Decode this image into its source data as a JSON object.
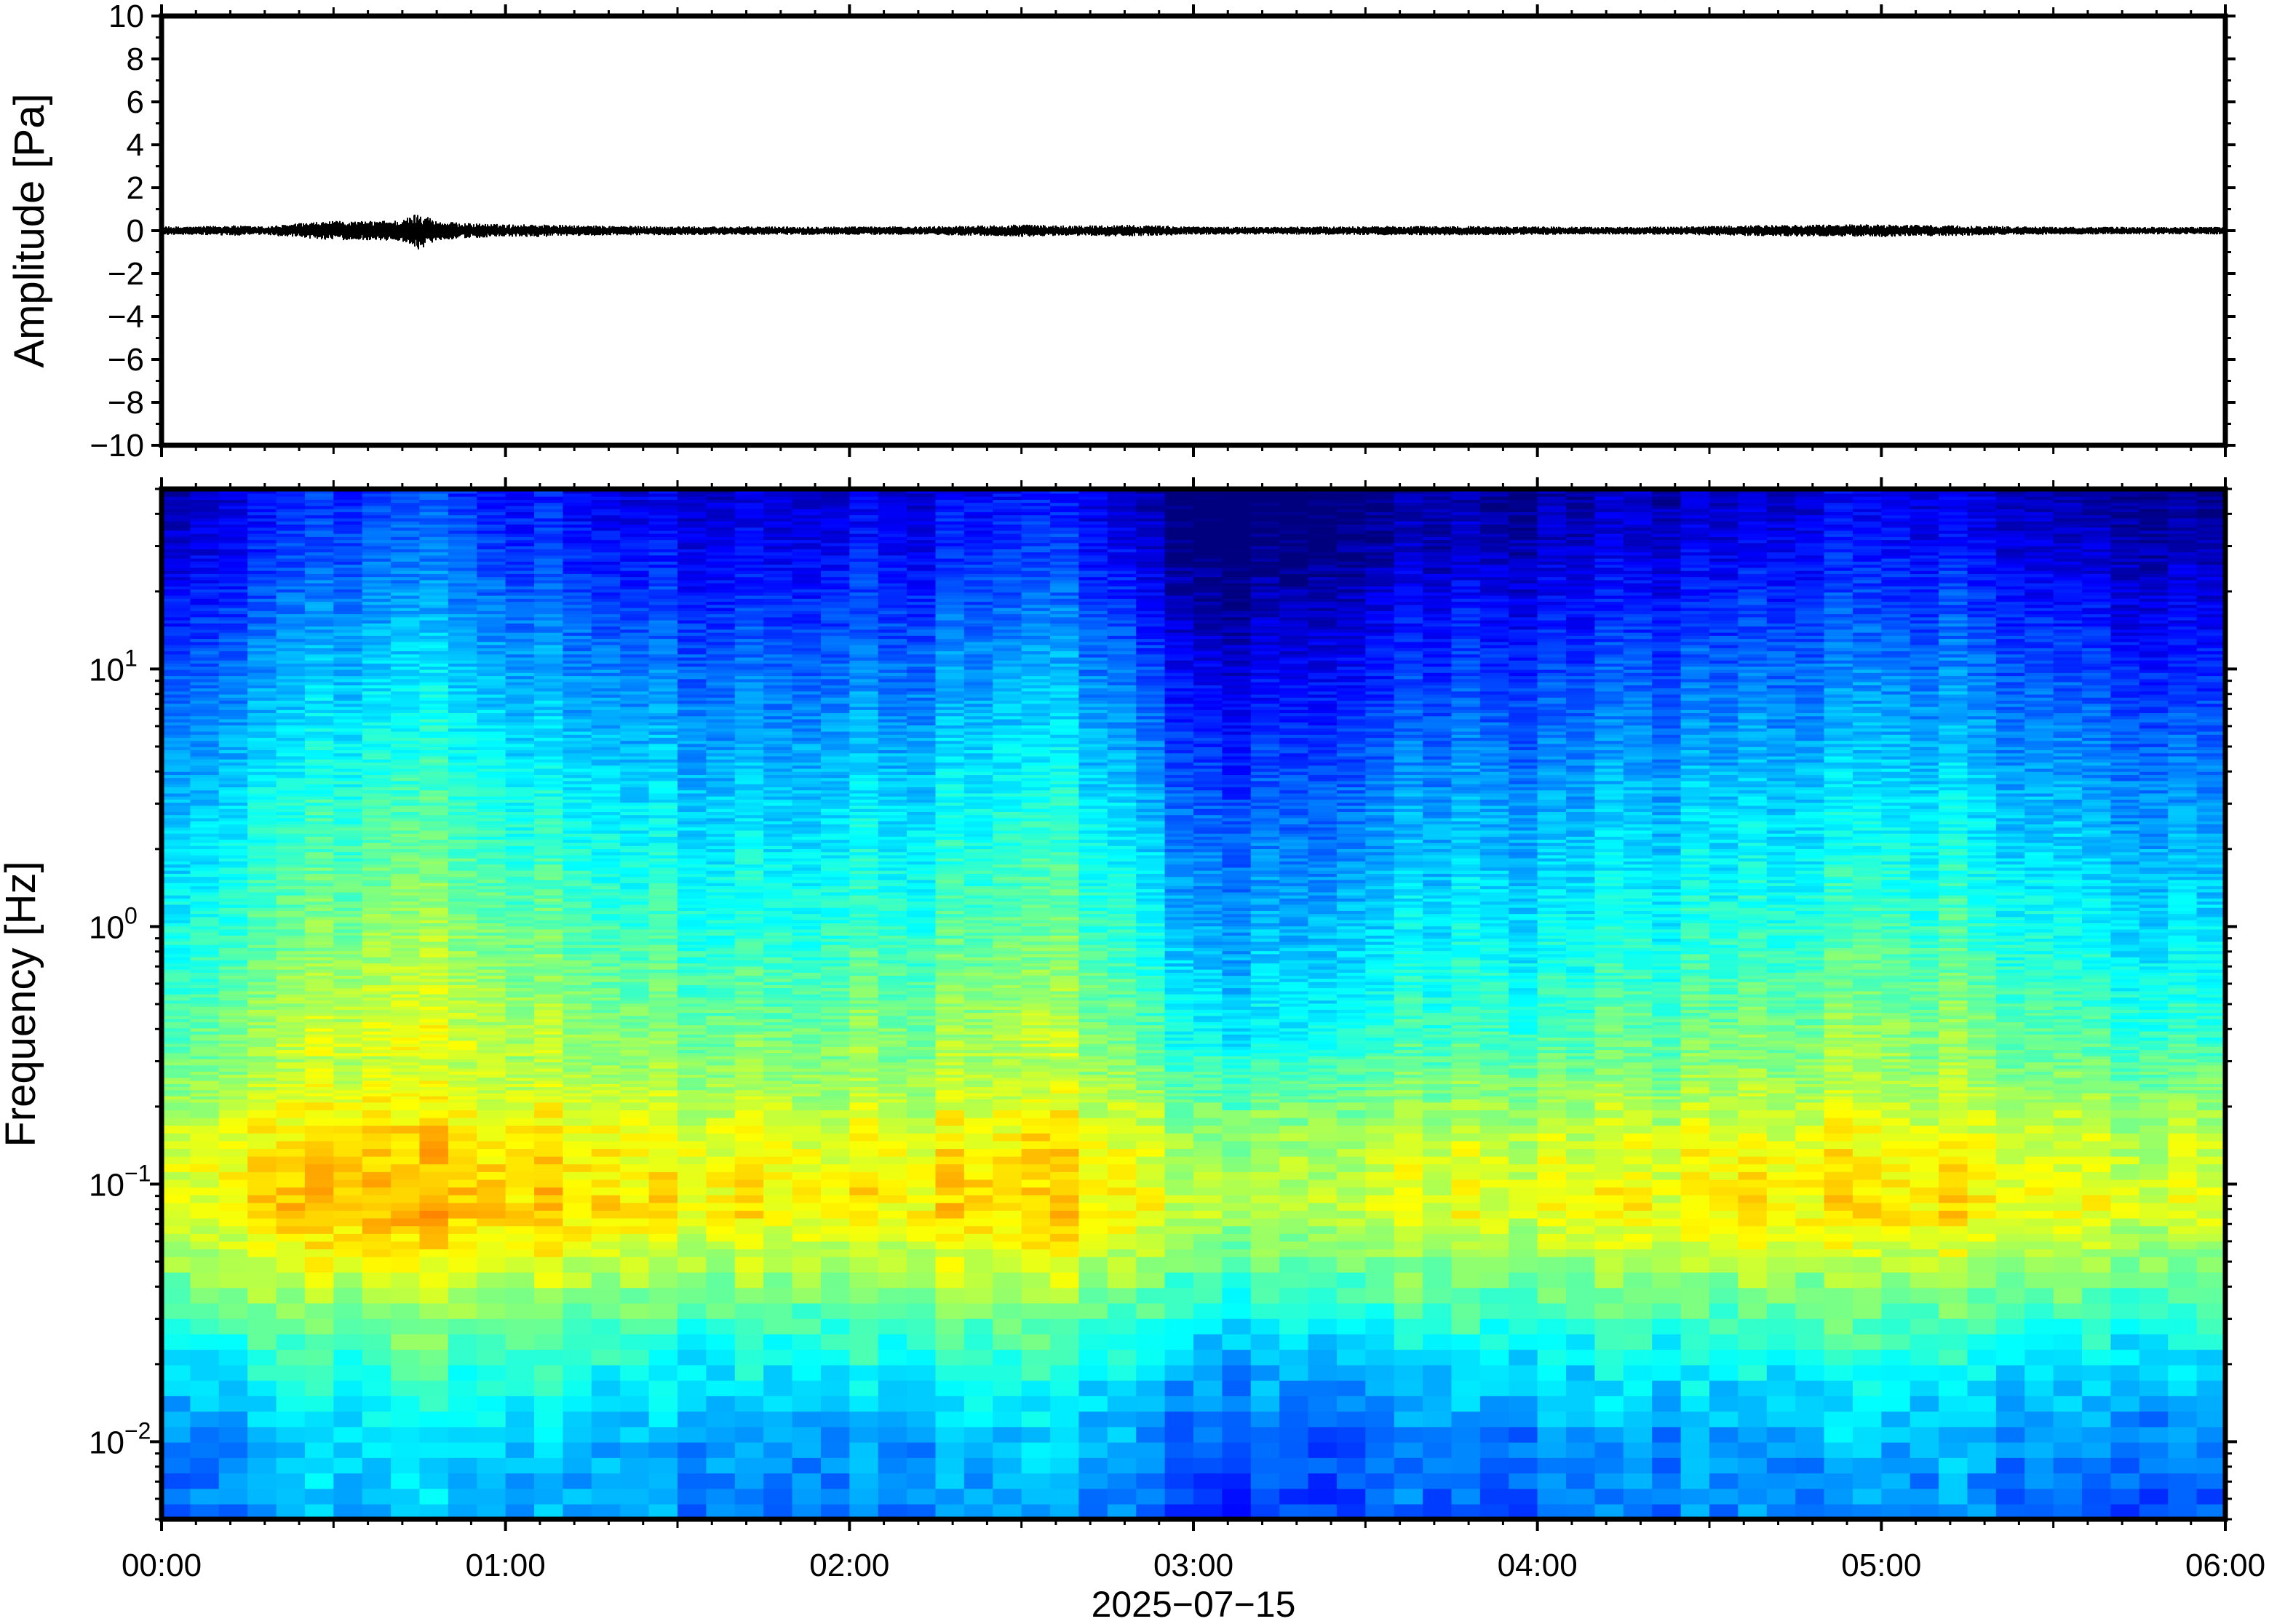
{
  "chart_data": [
    {
      "type": "line",
      "panel": "waveform",
      "ylabel": "Amplitude [Pa]",
      "ylim": [
        -10,
        10
      ],
      "yticks": [
        10,
        8,
        6,
        4,
        2,
        0,
        -2,
        -4,
        -6,
        -8,
        -10
      ],
      "ytick_labels": [
        "10",
        "8",
        "6",
        "4",
        "2",
        "0",
        "−2",
        "−4",
        "−6",
        "−8",
        "−10"
      ],
      "x_range_hours": [
        0,
        6
      ],
      "series": [
        {
          "color": "#000000",
          "envelope_time_hours": [
            0.0,
            0.1,
            0.2,
            0.3,
            0.4,
            0.5,
            0.6,
            0.7,
            0.75,
            0.8,
            0.9,
            1.0,
            1.1,
            1.2,
            1.4,
            1.6,
            1.8,
            2.0,
            2.2,
            2.4,
            2.5,
            2.6,
            2.7,
            2.8,
            3.0,
            3.2,
            3.4,
            3.6,
            3.8,
            4.0,
            4.2,
            4.4,
            4.6,
            4.8,
            5.0,
            5.2,
            5.4,
            5.6,
            5.8,
            6.0
          ],
          "envelope_amplitude_pa": [
            0.2,
            0.2,
            0.25,
            0.2,
            0.35,
            0.45,
            0.45,
            0.5,
            0.9,
            0.45,
            0.35,
            0.3,
            0.3,
            0.25,
            0.22,
            0.2,
            0.2,
            0.2,
            0.2,
            0.25,
            0.3,
            0.25,
            0.25,
            0.28,
            0.2,
            0.18,
            0.2,
            0.22,
            0.22,
            0.2,
            0.18,
            0.2,
            0.25,
            0.28,
            0.3,
            0.25,
            0.2,
            0.18,
            0.18,
            0.18
          ]
        }
      ]
    },
    {
      "type": "heatmap",
      "panel": "spectrogram",
      "ylabel": "Frequency [Hz]",
      "xlabel": "2025−07−15",
      "yscale": "log",
      "ylim_hz": [
        0.005,
        50
      ],
      "yticks": [
        {
          "base": "10",
          "exp": "1",
          "value": 10
        },
        {
          "base": "10",
          "exp": "0",
          "value": 1
        },
        {
          "base": "10",
          "exp": "−1",
          "value": 0.1
        },
        {
          "base": "10",
          "exp": "−2",
          "value": 0.01
        }
      ],
      "x_ticks": [
        "00:00",
        "01:00",
        "02:00",
        "03:00",
        "04:00",
        "05:00",
        "06:00"
      ],
      "x_range_hours": [
        0,
        6
      ],
      "colormap": [
        "#00007f",
        "#0000ff",
        "#007fff",
        "#00ffff",
        "#7fff7f",
        "#ffff00",
        "#ff7f00",
        "#ff0000"
      ],
      "relative_power_profile": {
        "frequency_hz": [
          0.005,
          0.01,
          0.02,
          0.05,
          0.08,
          0.15,
          0.3,
          1,
          3,
          10,
          30,
          50
        ],
        "level": [
          0.28,
          0.32,
          0.42,
          0.62,
          0.72,
          0.68,
          0.57,
          0.46,
          0.37,
          0.25,
          0.12,
          0.08
        ]
      },
      "relative_power_variation": {
        "time_hours": [
          0.0,
          0.25,
          0.5,
          0.75,
          1.0,
          1.25,
          1.5,
          1.75,
          2.0,
          2.25,
          2.5,
          2.75,
          3.0,
          3.25,
          3.5,
          3.75,
          4.0,
          4.25,
          4.5,
          4.75,
          5.0,
          5.25,
          5.5,
          5.75,
          6.0
        ],
        "offset": [
          0.0,
          0.03,
          0.07,
          0.1,
          0.06,
          0.02,
          0.01,
          0.0,
          0.03,
          0.02,
          0.06,
          0.03,
          -0.07,
          -0.09,
          -0.04,
          -0.02,
          -0.03,
          -0.01,
          0.0,
          0.01,
          0.03,
          0.02,
          -0.01,
          -0.03,
          -0.05
        ]
      }
    }
  ]
}
